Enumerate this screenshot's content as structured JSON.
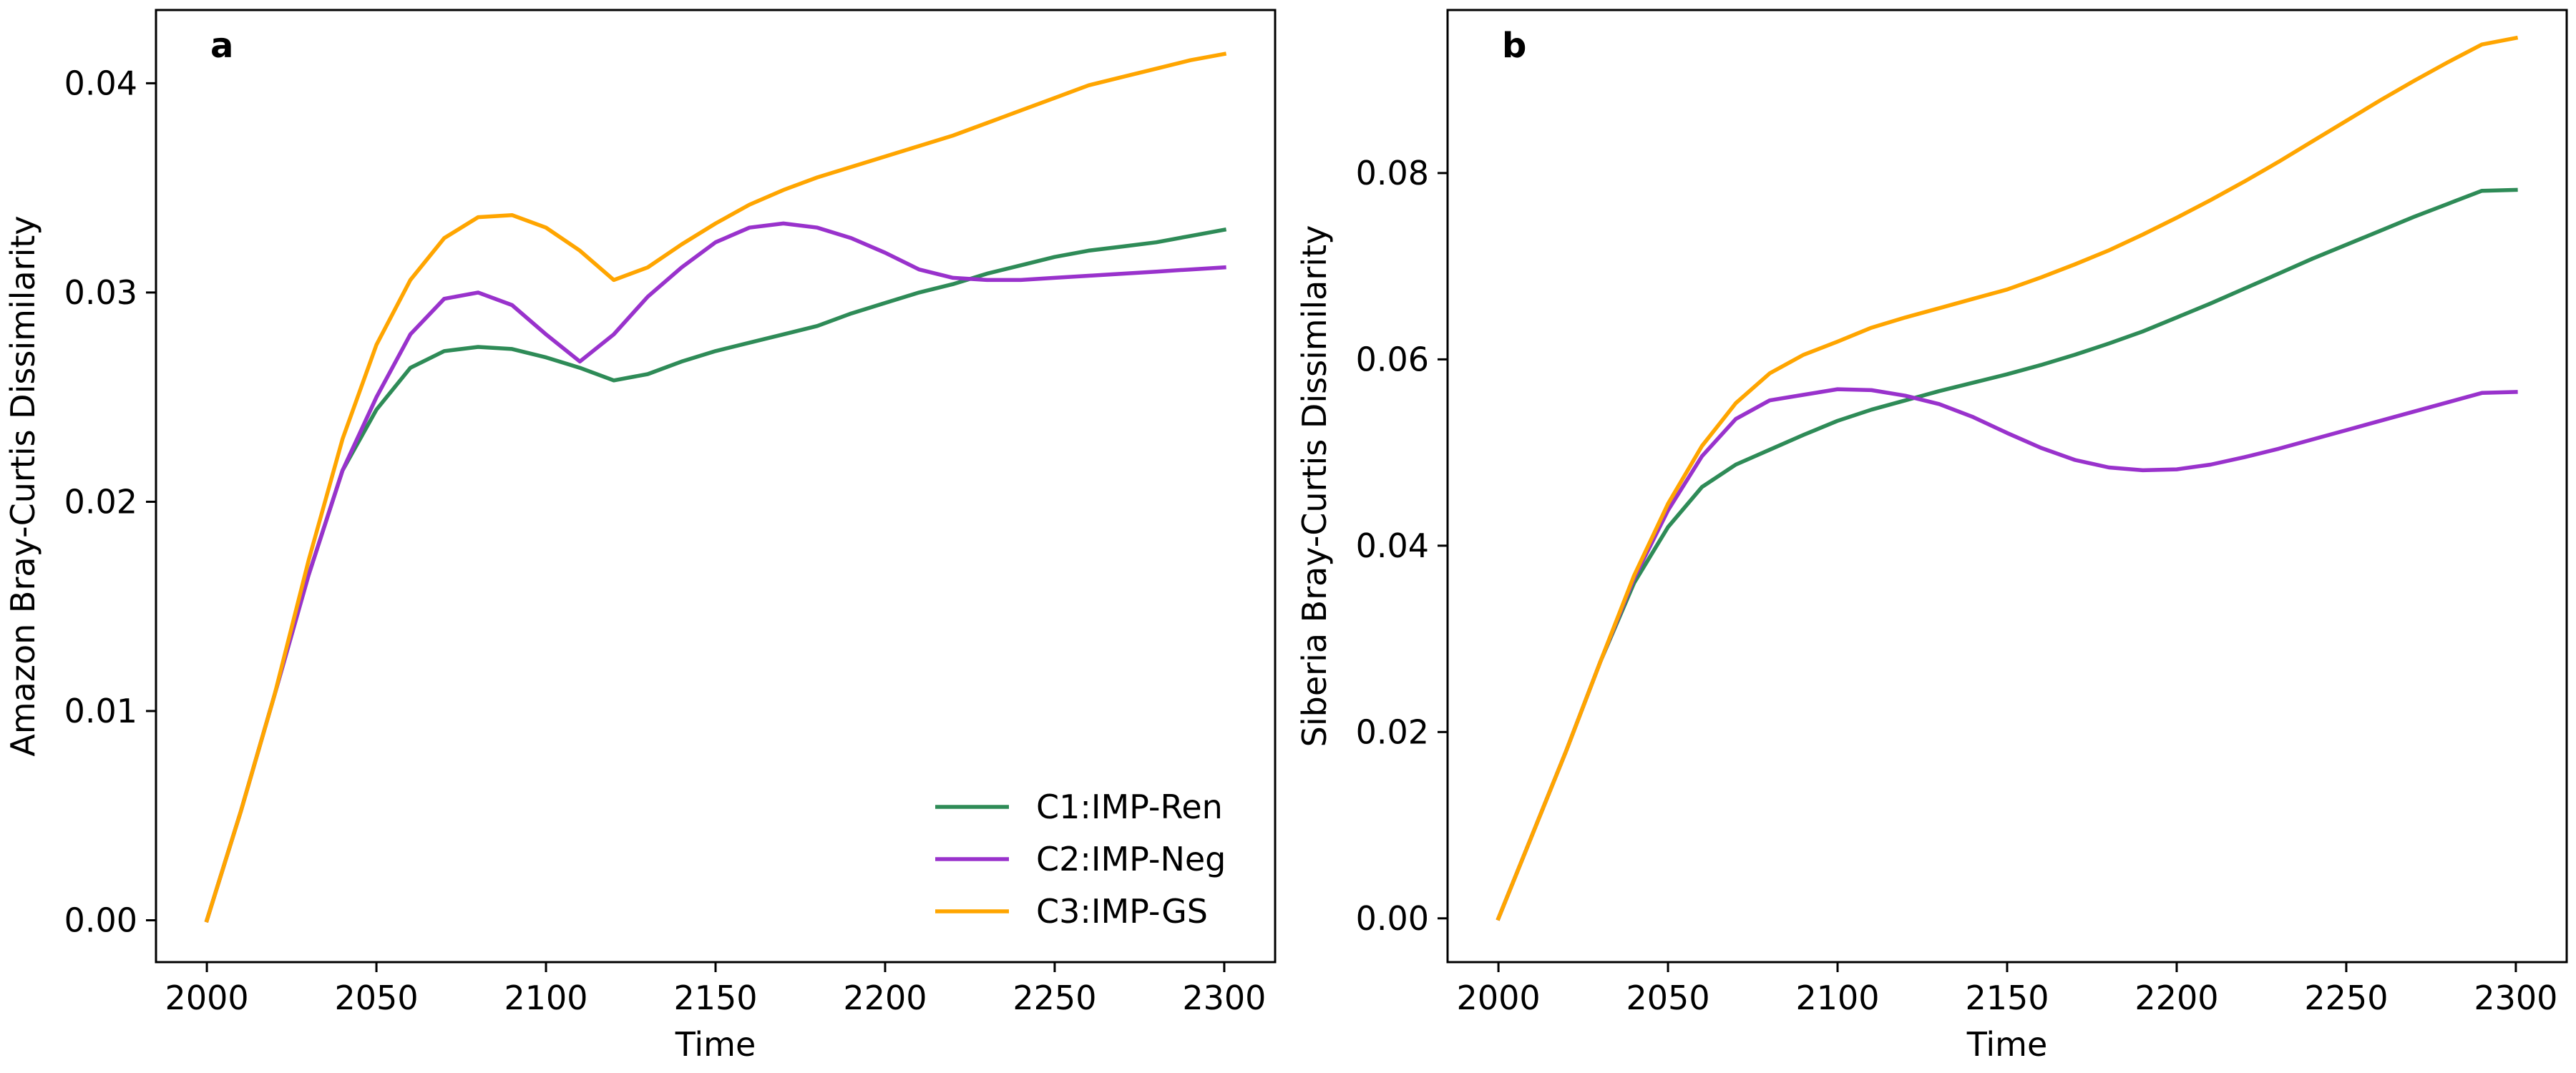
{
  "chart_data": [
    {
      "type": "line",
      "panel_label": "a",
      "xlabel": "Time",
      "ylabel": "Amazon Bray-Curtis Dissimilarity",
      "xlim": [
        1985,
        2315
      ],
      "ylim": [
        -0.002,
        0.0435
      ],
      "xticks": [
        2000,
        2050,
        2100,
        2150,
        2200,
        2250,
        2300
      ],
      "yticks": [
        0.0,
        0.01,
        0.02,
        0.03,
        0.04
      ],
      "ytick_labels": [
        "0.00",
        "0.01",
        "0.02",
        "0.03",
        "0.04"
      ],
      "grid": false,
      "legend_position": "lower-right",
      "x": [
        2000,
        2010,
        2020,
        2030,
        2040,
        2050,
        2060,
        2070,
        2080,
        2090,
        2100,
        2110,
        2120,
        2130,
        2140,
        2150,
        2160,
        2170,
        2180,
        2190,
        2200,
        2210,
        2220,
        2230,
        2240,
        2250,
        2260,
        2270,
        2280,
        2290,
        2300
      ],
      "series": [
        {
          "name": "C1:IMP-Ren",
          "color": "#2e8b57",
          "values": [
            0.0,
            0.0052,
            0.0108,
            0.0165,
            0.0215,
            0.0244,
            0.0264,
            0.0272,
            0.0274,
            0.0273,
            0.0269,
            0.0264,
            0.0258,
            0.0261,
            0.0267,
            0.0272,
            0.0276,
            0.028,
            0.0284,
            0.029,
            0.0295,
            0.03,
            0.0304,
            0.0309,
            0.0313,
            0.0317,
            0.032,
            0.0322,
            0.0324,
            0.0327,
            0.033
          ]
        },
        {
          "name": "C2:IMP-Neg",
          "color": "#9932cc",
          "values": [
            0.0,
            0.0052,
            0.0108,
            0.0165,
            0.0215,
            0.025,
            0.028,
            0.0297,
            0.03,
            0.0294,
            0.028,
            0.0267,
            0.028,
            0.0298,
            0.0312,
            0.0324,
            0.0331,
            0.0333,
            0.0331,
            0.0326,
            0.0319,
            0.0311,
            0.0307,
            0.0306,
            0.0306,
            0.0307,
            0.0308,
            0.0309,
            0.031,
            0.0311,
            0.0312
          ]
        },
        {
          "name": "C3:IMP-GS",
          "color": "#ffa500",
          "values": [
            0.0,
            0.0052,
            0.0108,
            0.0172,
            0.023,
            0.0275,
            0.0306,
            0.0326,
            0.0336,
            0.0337,
            0.0331,
            0.032,
            0.0306,
            0.0312,
            0.0323,
            0.0333,
            0.0342,
            0.0349,
            0.0355,
            0.036,
            0.0365,
            0.037,
            0.0375,
            0.0381,
            0.0387,
            0.0393,
            0.0399,
            0.0403,
            0.0407,
            0.0411,
            0.0414
          ]
        }
      ]
    },
    {
      "type": "line",
      "panel_label": "b",
      "xlabel": "Time",
      "ylabel": "Siberia Bray-Curtis Dissimilarity",
      "xlim": [
        1985,
        2315
      ],
      "ylim": [
        -0.0047,
        0.0975
      ],
      "xticks": [
        2000,
        2050,
        2100,
        2150,
        2200,
        2250,
        2300
      ],
      "yticks": [
        0.0,
        0.02,
        0.04,
        0.06,
        0.08
      ],
      "ytick_labels": [
        "0.00",
        "0.02",
        "0.04",
        "0.06",
        "0.08"
      ],
      "grid": false,
      "x": [
        2000,
        2010,
        2020,
        2030,
        2040,
        2050,
        2060,
        2070,
        2080,
        2090,
        2100,
        2110,
        2120,
        2130,
        2140,
        2150,
        2160,
        2170,
        2180,
        2190,
        2200,
        2210,
        2220,
        2230,
        2240,
        2250,
        2260,
        2270,
        2280,
        2290,
        2300
      ],
      "series": [
        {
          "name": "C1:IMP-Ren",
          "color": "#2e8b57",
          "values": [
            0.0,
            0.009,
            0.018,
            0.0275,
            0.036,
            0.042,
            0.0463,
            0.0487,
            0.0503,
            0.0519,
            0.0534,
            0.0546,
            0.0556,
            0.0566,
            0.0575,
            0.0584,
            0.0594,
            0.0605,
            0.0617,
            0.063,
            0.0645,
            0.066,
            0.0676,
            0.0692,
            0.0708,
            0.0723,
            0.0738,
            0.0753,
            0.0767,
            0.0781,
            0.0782
          ]
        },
        {
          "name": "C2:IMP-Neg",
          "color": "#9932cc",
          "values": [
            0.0,
            0.009,
            0.018,
            0.0275,
            0.0365,
            0.0438,
            0.0496,
            0.0536,
            0.0556,
            0.0562,
            0.0568,
            0.0567,
            0.0561,
            0.0552,
            0.0538,
            0.0521,
            0.0505,
            0.0492,
            0.0484,
            0.0481,
            0.0482,
            0.0487,
            0.0495,
            0.0504,
            0.0514,
            0.0524,
            0.0534,
            0.0544,
            0.0554,
            0.0564,
            0.0565
          ]
        },
        {
          "name": "C3:IMP-GS",
          "color": "#ffa500",
          "values": [
            0.0,
            0.009,
            0.018,
            0.0275,
            0.0368,
            0.0445,
            0.0507,
            0.0553,
            0.0585,
            0.0605,
            0.0619,
            0.0634,
            0.0645,
            0.0655,
            0.0665,
            0.0675,
            0.0688,
            0.0702,
            0.0717,
            0.0734,
            0.0752,
            0.0771,
            0.0791,
            0.0812,
            0.0834,
            0.0856,
            0.0878,
            0.0899,
            0.0919,
            0.0938,
            0.0945
          ]
        }
      ]
    }
  ]
}
